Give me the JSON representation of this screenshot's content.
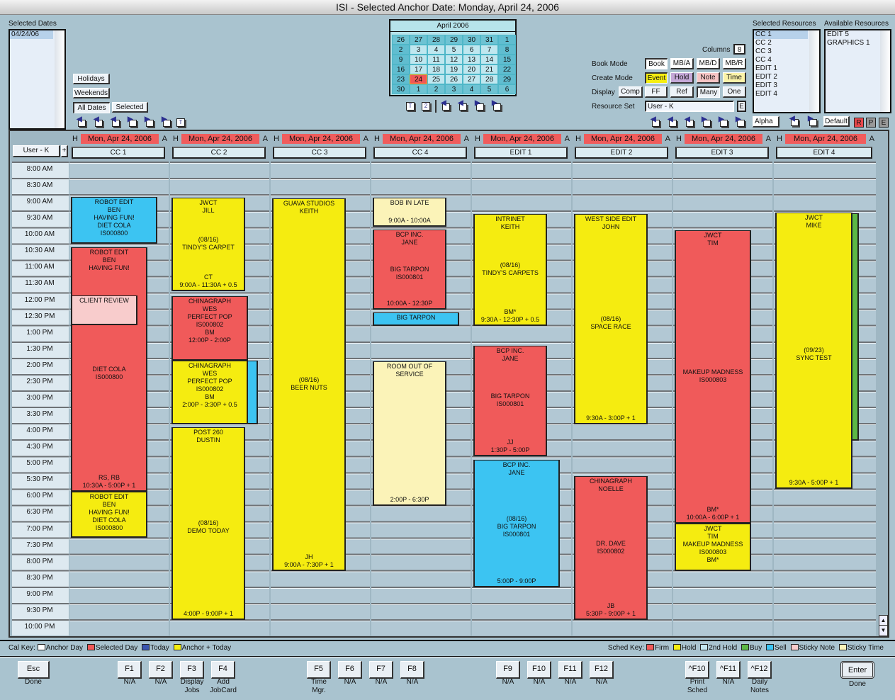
{
  "title": "ISI - Selected Anchor Date: Monday, April 24, 2006",
  "selected_dates": {
    "label": "Selected Dates",
    "items": [
      "04/24/06"
    ]
  },
  "date_buttons": {
    "holidays": "Holidays",
    "weekends": "Weekends",
    "all_dates": "All Dates",
    "selected": "Selected"
  },
  "calendar": {
    "month": "April 2006",
    "days": [
      "26",
      "27",
      "28",
      "29",
      "30",
      "31",
      "1",
      "2",
      "3",
      "4",
      "5",
      "6",
      "7",
      "8",
      "9",
      "10",
      "11",
      "12",
      "13",
      "14",
      "15",
      "16",
      "17",
      "18",
      "19",
      "20",
      "21",
      "22",
      "23",
      "24",
      "25",
      "26",
      "27",
      "28",
      "29",
      "30",
      "1",
      "2",
      "3",
      "4",
      "5",
      "6"
    ],
    "selected_day": "24",
    "today_icon": "T",
    "two_icon": "2"
  },
  "controls": {
    "columns_label": "Columns",
    "columns_value": "8",
    "book_mode_label": "Book Mode",
    "book_mode": [
      "Book",
      "MB/A",
      "MB/D",
      "MB/R"
    ],
    "create_mode_label": "Create Mode",
    "create_mode": [
      "Event",
      "Hold",
      "Note",
      "Time"
    ],
    "create_mode_colors": [
      "#f5ee10",
      "#c5a9d8",
      "#f6c4c4",
      "#fbf3a8"
    ],
    "display_label": "Display",
    "display": [
      "Comp",
      "FF",
      "Ref",
      "Many",
      "One"
    ],
    "resource_set_label": "Resource Set",
    "resource_set_value": "User - K",
    "resource_set_edit": "E"
  },
  "resources": {
    "selected_label": "Selected Resources",
    "selected": [
      "CC 1",
      "CC 2",
      "CC 3",
      "CC 4",
      "EDIT 1",
      "EDIT 2",
      "EDIT 3",
      "EDIT 4"
    ],
    "available_label": "Available Resources",
    "available": [
      "EDIT 5",
      "GRAPHICS 1"
    ],
    "alpha": "Alpha",
    "default": "Default",
    "r": "R",
    "p": "P",
    "e": "E"
  },
  "schedule": {
    "user_button": "User - K",
    "plus": "+",
    "columns": [
      {
        "date": "Mon, Apr 24, 2006",
        "resource": "CC 1"
      },
      {
        "date": "Mon, Apr 24, 2006",
        "resource": "CC 2"
      },
      {
        "date": "Mon, Apr 24, 2006",
        "resource": "CC 3"
      },
      {
        "date": "Mon, Apr 24, 2006",
        "resource": "CC 4"
      },
      {
        "date": "Mon, Apr 24, 2006",
        "resource": "EDIT 1"
      },
      {
        "date": "Mon, Apr 24, 2006",
        "resource": "EDIT 2"
      },
      {
        "date": "Mon, Apr 24, 2006",
        "resource": "EDIT 3"
      },
      {
        "date": "Mon, Apr 24, 2006",
        "resource": "EDIT 4"
      }
    ],
    "h_label": "H",
    "a_label": "A",
    "times": [
      "8:00 AM",
      "8:30 AM",
      "9:00 AM",
      "9:30 AM",
      "10:00 AM",
      "10:30 AM",
      "11:00 AM",
      "11:30 AM",
      "12:00 PM",
      "12:30 PM",
      "1:00 PM",
      "1:30 PM",
      "2:00 PM",
      "2:30 PM",
      "3:00 PM",
      "3:30 PM",
      "4:00 PM",
      "4:30 PM",
      "5:00 PM",
      "5:30 PM",
      "6:00 PM",
      "6:30 PM",
      "7:00 PM",
      "7:30 PM",
      "8:00 PM",
      "8:30 PM",
      "9:00 PM",
      "9:30 PM",
      "10:00 PM"
    ],
    "events": [
      {
        "col": 0,
        "type": "Sell",
        "start": 9.05,
        "end": 10.47,
        "top": "ROBOT EDIT\nBEN\nHAVING FUN!\nDIET COLA\nIS000800",
        "mid": "",
        "bottom": ""
      },
      {
        "col": 0,
        "type": "Firm",
        "start": 10.58,
        "end": 18.06,
        "top": "ROBOT EDIT\nBEN\nHAVING FUN!",
        "mid": "DIET COLA\nIS000800",
        "bottom": "RS, RB\n10:30A - 5:00P + 1"
      },
      {
        "col": 0,
        "type": "Sticky Note",
        "start": 12.05,
        "end": 12.96,
        "top": "CLIENT REVIEW",
        "mid": "",
        "bottom": ""
      },
      {
        "col": 0,
        "type": "Hold",
        "start": 18.06,
        "end": 19.46,
        "top": "ROBOT EDIT\nBEN\nHAVING FUN!\nDIET COLA\nIS000800",
        "mid": "",
        "bottom": ""
      },
      {
        "col": 1,
        "type": "Hold",
        "start": 9.06,
        "end": 11.92,
        "top": "JWCT\nJILL",
        "mid": "(08/16)\nTINDY'S CARPET",
        "bottom": "CT\n9:00A - 11:30A + 0.5"
      },
      {
        "col": 1,
        "type": "Firm",
        "start": 12.07,
        "end": 14.05,
        "top": "CHINAGRAPH\nWES\nPERFECT POP\nIS000802\nBM\n12:00P - 2:00P",
        "mid": "",
        "bottom": ""
      },
      {
        "col": 1,
        "type": "Sell",
        "start": 14.05,
        "end": 16.0,
        "top": "",
        "mid": "",
        "bottom": ""
      },
      {
        "col": 1,
        "type": "Hold",
        "start": 14.05,
        "end": 16.0,
        "top": "CHINAGRAPH\nWES\nPERFECT POP\nIS000802\nBM\n2:00P - 3:30P + 0.5",
        "mid": "",
        "bottom": ""
      },
      {
        "col": 1,
        "type": "Hold",
        "start": 16.08,
        "end": 21.98,
        "top": "POST 260\nDUSTIN",
        "mid": "(08/16)\nDEMO TODAY",
        "bottom": "4:00P - 9:00P + 1"
      },
      {
        "col": 2,
        "type": "Hold",
        "start": 9.08,
        "end": 20.48,
        "top": "GUAVA STUDIOS\nKEITH",
        "mid": "(08/16)\nBEER NUTS",
        "bottom": "JH\n9:00A - 7:30P + 1"
      },
      {
        "col": 3,
        "type": "Sticky Time",
        "start": 9.06,
        "end": 9.95,
        "top": "BOB IN LATE",
        "mid": "",
        "bottom": "9:00A - 10:00A"
      },
      {
        "col": 3,
        "type": "Firm",
        "start": 10.04,
        "end": 12.49,
        "top": "BCP INC.\nJANE",
        "mid": "BIG TARPON\nIS000801",
        "bottom": "10:00A - 12:30P"
      },
      {
        "col": 3,
        "type": "Sell",
        "start": 12.57,
        "end": 12.98,
        "top": "BIG TARPON",
        "mid": "",
        "bottom": ""
      },
      {
        "col": 3,
        "type": "Sticky Time",
        "start": 14.07,
        "end": 18.49,
        "top": "ROOM OUT OF\nSERVICE",
        "mid": "",
        "bottom": "2:00P - 6:30P"
      },
      {
        "col": 4,
        "type": "Hold",
        "start": 9.56,
        "end": 12.98,
        "top": "INTRINET\nKEITH",
        "mid": "(08/16)\nTINDY'S CARPETS",
        "bottom": "BM*\n9:30A - 12:30P + 0.5"
      },
      {
        "col": 4,
        "type": "Firm",
        "start": 13.59,
        "end": 16.97,
        "top": "BCP INC.\nJANE",
        "mid": "BIG TARPON\nIS000801",
        "bottom": "JJ\n1:30P - 5:00P"
      },
      {
        "col": 4,
        "type": "Sell",
        "start": 17.08,
        "end": 20.98,
        "top": "BCP INC.\nJANE",
        "mid": "(08/16)\nBIG TARPON\nIS000801",
        "bottom": "5:00P - 9:00P"
      },
      {
        "col": 5,
        "type": "Hold",
        "start": 9.56,
        "end": 16.0,
        "top": "WEST SIDE EDIT\nJOHN",
        "mid": "(08/16)\nSPACE RACE",
        "bottom": "9:30A - 3:00P + 1"
      },
      {
        "col": 5,
        "type": "Firm",
        "start": 17.58,
        "end": 21.98,
        "top": "CHINAGRAPH\nNOELLE",
        "mid": "DR. DAVE\nIS000802",
        "bottom": "JB\n5:30P - 9:00P + 1"
      },
      {
        "col": 6,
        "type": "Firm",
        "start": 10.06,
        "end": 19.03,
        "top": "JWCT\nTIM",
        "mid": "MAKEUP MADNESS\nIS000803",
        "bottom": "BM*\n10:00A - 6:00P + 1"
      },
      {
        "col": 6,
        "type": "Hold",
        "start": 19.03,
        "end": 20.48,
        "top": "JWCT\nTIM\nMAKEUP MADNESS\nIS000803\nBM*",
        "mid": "",
        "bottom": ""
      },
      {
        "col": 7,
        "type": "Buy",
        "start": 9.54,
        "end": 16.5,
        "top": "",
        "mid": "",
        "bottom": ""
      },
      {
        "col": 7,
        "type": "Hold",
        "start": 9.52,
        "end": 17.97,
        "top": "JWCT\nMIKE",
        "mid": "(09/23)\nSYNC TEST",
        "bottom": "9:30A - 5:00P + 1"
      }
    ]
  },
  "cal_key": {
    "label": "Cal Key:",
    "items": [
      {
        "label": "Anchor Day",
        "color": "#ffffff"
      },
      {
        "label": "Selected Day",
        "color": "#f05858"
      },
      {
        "label": "Today",
        "color": "#3a55b0"
      },
      {
        "label": "Anchor + Today",
        "color": "#f5ee10"
      }
    ]
  },
  "sched_key": {
    "label": "Sched Key:",
    "items": [
      {
        "label": "Firm",
        "color": "#f05a5a"
      },
      {
        "label": "Hold",
        "color": "#f5ec10"
      },
      {
        "label": "2nd Hold",
        "color": "#c4e6f0"
      },
      {
        "label": "Buy",
        "color": "#5cb845"
      },
      {
        "label": "Sell",
        "color": "#3cc4f2"
      },
      {
        "label": "Sticky Note",
        "color": "#f8cccc"
      },
      {
        "label": "Sticky Time",
        "color": "#fbf3b8"
      }
    ]
  },
  "function_keys": [
    {
      "key": "Esc",
      "label": "Done"
    },
    {
      "key": "F1",
      "label": "N/A"
    },
    {
      "key": "F2",
      "label": "N/A"
    },
    {
      "key": "F3",
      "label": "Display\nJobs"
    },
    {
      "key": "F4",
      "label": "Add\nJobCard"
    },
    {
      "key": "F5",
      "label": "Time\nMgr."
    },
    {
      "key": "F6",
      "label": "N/A"
    },
    {
      "key": "F7",
      "label": "N/A"
    },
    {
      "key": "F8",
      "label": "N/A"
    },
    {
      "key": "F9",
      "label": "N/A"
    },
    {
      "key": "F10",
      "label": "N/A"
    },
    {
      "key": "F11",
      "label": "N/A"
    },
    {
      "key": "F12",
      "label": "N/A"
    },
    {
      "key": "^F10",
      "label": "Print\nSched"
    },
    {
      "key": "^F11",
      "label": "N/A"
    },
    {
      "key": "^F12",
      "label": "Daily\nNotes"
    },
    {
      "key": "Enter",
      "label": "Done"
    }
  ]
}
